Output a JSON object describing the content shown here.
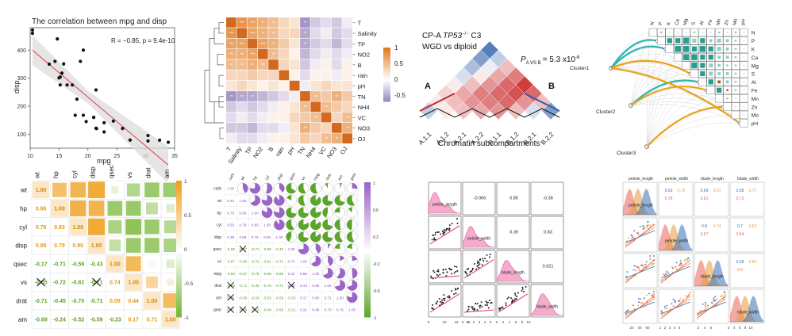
{
  "chart_data": [
    {
      "type": "scatter",
      "title": "The correlation between mpg and disp",
      "annotation": "R = −0.85, p = 9.4e-10",
      "xlabel": "mpg",
      "ylabel": "disp",
      "xlim": [
        10,
        35
      ],
      "ylim": [
        50,
        480
      ],
      "xticks": [
        "10",
        "15",
        "20",
        "25",
        "30",
        "35"
      ],
      "yticks": [
        "100",
        "200",
        "300",
        "400"
      ],
      "x": [
        21,
        21,
        22.8,
        21.4,
        18.7,
        18.1,
        14.3,
        24.4,
        22.8,
        19.2,
        17.8,
        16.4,
        17.3,
        15.2,
        10.4,
        10.4,
        14.7,
        32.4,
        30.4,
        33.9,
        21.5,
        15.5,
        15.2,
        13.3,
        19.2,
        27.3,
        26,
        30.4,
        15.8,
        19.7,
        15,
        21.4
      ],
      "y": [
        160,
        160,
        108,
        258,
        360,
        225,
        360,
        146.7,
        140.8,
        167.6,
        167.6,
        275.8,
        275.8,
        275.8,
        472,
        460,
        440,
        78.7,
        75.7,
        71.1,
        120.1,
        318,
        304,
        350,
        400,
        79,
        120.3,
        95.1,
        351,
        145,
        301,
        121
      ]
    },
    {
      "type": "heatmap",
      "rows": [
        "T",
        "Salinity",
        "TP",
        "NO2",
        "B",
        "rain",
        "pH",
        "TN",
        "NH4",
        "VC",
        "NO3",
        "OJ"
      ],
      "cols": [
        "T",
        "Salinity",
        "TP",
        "NO2",
        "B",
        "rain",
        "pH",
        "TN",
        "NH4",
        "VC",
        "NO3",
        "OJ"
      ],
      "legend_ticks": [
        "1",
        "0.5",
        "0",
        "-0.5"
      ],
      "values": [
        [
          1,
          0.8,
          0.7,
          0.6,
          0.5,
          0.3,
          0.2,
          -0.6,
          -0.3,
          -0.2,
          -0.3,
          -0.1
        ],
        [
          0.8,
          1,
          0.7,
          0.6,
          0.5,
          0.3,
          0.3,
          -0.5,
          -0.2,
          -0.1,
          -0.3,
          -0.2
        ],
        [
          0.7,
          0.7,
          1,
          0.7,
          0.6,
          0.4,
          0.2,
          -0.5,
          -0.3,
          -0.2,
          -0.4,
          -0.2
        ],
        [
          0.6,
          0.6,
          0.7,
          1,
          0.5,
          0.3,
          0.1,
          -0.4,
          -0.2,
          -0.1,
          -0.2,
          -0.1
        ],
        [
          0.5,
          0.5,
          0.6,
          0.5,
          1,
          0.3,
          0.2,
          -0.3,
          -0.1,
          0.1,
          -0.2,
          0.1
        ],
        [
          0.3,
          0.3,
          0.4,
          0.3,
          0.3,
          1,
          0.1,
          -0.2,
          0.1,
          0.1,
          -0.1,
          0.1
        ],
        [
          0.2,
          0.3,
          0.2,
          0.1,
          0.2,
          0.1,
          1,
          -0.1,
          0.2,
          0.3,
          0.2,
          0.2
        ],
        [
          -0.6,
          -0.5,
          -0.5,
          -0.4,
          -0.3,
          -0.2,
          -0.1,
          1,
          0.5,
          0.4,
          0.6,
          0.4
        ],
        [
          -0.3,
          -0.2,
          -0.3,
          -0.2,
          -0.1,
          0.1,
          0.2,
          0.5,
          1,
          0.5,
          0.4,
          0.3
        ],
        [
          -0.2,
          -0.1,
          -0.2,
          -0.1,
          0.1,
          0.1,
          0.3,
          0.4,
          0.5,
          1,
          0.3,
          0.5
        ],
        [
          -0.3,
          -0.3,
          -0.4,
          -0.2,
          -0.2,
          -0.1,
          0.2,
          0.6,
          0.4,
          0.3,
          1,
          0.6
        ],
        [
          -0.1,
          -0.2,
          -0.2,
          -0.1,
          0.1,
          0.1,
          0.2,
          0.4,
          0.3,
          0.5,
          0.6,
          1
        ]
      ]
    },
    {
      "type": "heatmap",
      "title_line1_pre": "CP-A ",
      "title_line1_italic": "TP53",
      "title_line1_sup": "−/−",
      "title_line1_post": " C3",
      "title_line2": "WGD vs diploid",
      "pvalue_label": "P",
      "pvalue_sub": "A VS B",
      "pvalue_value": "= 5.3 x10",
      "pvalue_exp": "-6",
      "xlabel": "Chromatin subcompartments",
      "categories": [
        "A.1.1",
        "A.1.2",
        "A.2.1",
        "A.2.2",
        "B.1.1",
        "B.1.2",
        "B.2.1",
        "B.2.2"
      ],
      "group_labels": [
        "A",
        "B"
      ],
      "values": [
        [
          -0.8
        ],
        [
          -0.6,
          -0.3
        ],
        [
          -0.4,
          -0.1,
          0.3
        ],
        [
          -0.2,
          0.1,
          0.4,
          0.6
        ],
        [
          0.1,
          0.3,
          0.5,
          0.7,
          0.9
        ],
        [
          0.2,
          0.4,
          0.6,
          0.7,
          0.8,
          0.7
        ],
        [
          0.1,
          0.3,
          0.5,
          0.6,
          0.7,
          0.5,
          0.3
        ],
        [
          -0.3,
          0.1,
          0.3,
          0.4,
          0.5,
          0.3,
          -0.2,
          -0.6
        ]
      ]
    },
    {
      "type": "heatmap",
      "cols": [
        "N",
        "P",
        "K",
        "Ca",
        "Mg",
        "S",
        "Al",
        "Fe",
        "Mn",
        "Zn",
        "Mo",
        "pH"
      ],
      "rows": [
        "N",
        "P",
        "K",
        "Ca",
        "Mg",
        "S",
        "Al",
        "Fe",
        "Mn",
        "Zn",
        "Mo",
        "pH"
      ],
      "clusters": [
        "Cluster1",
        "Cluster2",
        "Cluster3"
      ],
      "values": [
        [
          1,
          0.2,
          0.1,
          0.1,
          0.1,
          0.2,
          0.1,
          0.1,
          0.2,
          0.1,
          0.2,
          0.1
        ],
        [
          0.2,
          1,
          0.5,
          0.5,
          0.6,
          0.4,
          0.5,
          0.3,
          0.4,
          0.3,
          0.2,
          0.1
        ],
        [
          0.1,
          0.5,
          1,
          0.6,
          0.6,
          0.5,
          0.6,
          0.5,
          0.4,
          0.3,
          0.2,
          0.1
        ],
        [
          0.1,
          0.5,
          0.6,
          1,
          0.6,
          0.6,
          0.5,
          0.5,
          0.3,
          0.3,
          0.2,
          0.1
        ],
        [
          0.1,
          0.6,
          0.6,
          0.6,
          1,
          0.6,
          0.5,
          0.4,
          0.3,
          0.2,
          0.2,
          0.1
        ],
        [
          0.2,
          0.4,
          0.5,
          0.6,
          0.6,
          1,
          0.5,
          0.4,
          0.3,
          0.3,
          0.2,
          0.1
        ],
        [
          0.1,
          0.5,
          0.6,
          0.5,
          0.5,
          0.5,
          1,
          0.5,
          -0.3,
          0.3,
          0.2,
          0.1
        ],
        [
          0.1,
          0.3,
          0.5,
          0.5,
          0.4,
          0.4,
          0.5,
          1,
          0.5,
          -0.2,
          0.2,
          0.1
        ],
        [
          0.2,
          0.4,
          0.4,
          0.3,
          0.3,
          0.3,
          -0.3,
          0.5,
          1,
          0.2,
          0.1,
          0.1
        ],
        [
          0.1,
          0.3,
          0.3,
          0.3,
          0.2,
          0.3,
          0.3,
          -0.2,
          0.2,
          1,
          0.1,
          0.1
        ],
        [
          0.2,
          0.2,
          0.2,
          0.2,
          0.2,
          0.2,
          0.2,
          0.2,
          0.1,
          0.1,
          1,
          0.1
        ],
        [
          0.1,
          0.1,
          0.1,
          0.1,
          0.1,
          0.1,
          0.1,
          0.1,
          0.1,
          0.1,
          0.1,
          1
        ]
      ]
    },
    {
      "type": "heatmap",
      "rows": [
        "wt",
        "hp",
        "cyl",
        "disp",
        "qsec",
        "vs",
        "drat",
        "am"
      ],
      "cols": [
        "wt",
        "hp",
        "cyl",
        "disp",
        "qsec",
        "vs",
        "drat",
        "am"
      ],
      "legend_ticks": [
        "1",
        "0.5",
        "0",
        "-0.5",
        "-1"
      ],
      "values": [
        [
          1.0,
          0.66,
          0.78,
          0.89,
          -0.17,
          -0.55,
          -0.71,
          -0.69
        ],
        [
          0.66,
          1.0,
          0.83,
          0.79,
          -0.71,
          -0.72,
          -0.45,
          -0.24
        ],
        [
          0.78,
          0.83,
          1.0,
          0.9,
          -0.59,
          -0.81,
          -0.7,
          -0.52
        ],
        [
          0.89,
          0.79,
          0.9,
          1.0,
          -0.43,
          -0.71,
          -0.71,
          -0.59
        ],
        [
          -0.17,
          -0.71,
          -0.59,
          -0.43,
          1.0,
          0.74,
          0.09,
          -0.23
        ],
        [
          -0.55,
          -0.72,
          -0.81,
          -0.71,
          0.74,
          1.0,
          0.44,
          0.17
        ],
        [
          -0.71,
          -0.45,
          -0.7,
          -0.71,
          0.09,
          0.44,
          1.0,
          0.71
        ],
        [
          -0.69,
          -0.24,
          -0.52,
          -0.59,
          -0.23,
          0.17,
          0.71,
          1.0
        ]
      ],
      "crossed_cells": [
        [
          5,
          0
        ],
        [
          5,
          3
        ]
      ],
      "lower_labels": [
        [
          "1.00"
        ],
        [
          "0.66",
          "1.00"
        ],
        [
          "0.78",
          "0.83",
          "1.00"
        ],
        [
          "0.89",
          "0.79",
          "0.90",
          "1.00"
        ],
        [
          "-0.17",
          "-0.71",
          "-0.59",
          "-0.43",
          "1.00"
        ],
        [
          "-0.55",
          "-0.72",
          "-0.81",
          "-0.71",
          "0.74",
          "1.00"
        ],
        [
          "-0.71",
          "-0.45",
          "-0.70",
          "-0.71",
          "0.09",
          "0.44",
          "1.00"
        ],
        [
          "-0.69",
          "-0.24",
          "-0.52",
          "-0.59",
          "-0.23",
          "0.17",
          "0.71",
          "1.00"
        ]
      ]
    },
    {
      "type": "heatmap",
      "rows": [
        "carb",
        "wt",
        "hp",
        "cyl",
        "disp",
        "qsec",
        "vs",
        "mpg",
        "drat",
        "am",
        "gear"
      ],
      "cols": [
        "carb",
        "wt",
        "hp",
        "cyl",
        "disp",
        "qsec",
        "vs",
        "mpg",
        "drat",
        "am",
        "gear"
      ],
      "legend_ticks": [
        "1",
        "0.6",
        "0.2",
        "-0.2",
        "-0.6",
        "-1"
      ],
      "values": [
        [
          1,
          0.43,
          0.75,
          0.53,
          0.39,
          -0.66,
          -0.57,
          -0.55,
          -0.09,
          0.06,
          0.27
        ],
        [
          0.43,
          1,
          0.66,
          0.78,
          0.89,
          -0.17,
          -0.55,
          -0.87,
          -0.71,
          -0.69,
          -0.58
        ],
        [
          0.75,
          0.66,
          1,
          0.83,
          0.79,
          -0.71,
          -0.72,
          -0.78,
          -0.45,
          -0.24,
          -0.13
        ],
        [
          0.53,
          0.78,
          0.83,
          1,
          0.9,
          -0.59,
          -0.81,
          -0.85,
          -0.7,
          -0.52,
          -0.49
        ],
        [
          0.39,
          0.89,
          0.79,
          0.9,
          1,
          -0.43,
          -0.71,
          -0.85,
          -0.71,
          -0.59,
          -0.56
        ],
        [
          -0.66,
          -0.17,
          -0.71,
          -0.59,
          -0.43,
          1,
          0.74,
          0.42,
          0.09,
          -0.23,
          -0.21
        ],
        [
          -0.57,
          -0.55,
          -0.72,
          -0.81,
          -0.71,
          0.74,
          1,
          0.66,
          0.44,
          0.17,
          0.21
        ],
        [
          -0.55,
          -0.87,
          -0.78,
          -0.85,
          -0.85,
          0.42,
          0.66,
          1,
          0.68,
          0.6,
          0.48
        ],
        [
          -0.09,
          -0.71,
          -0.45,
          -0.7,
          -0.71,
          0.09,
          0.44,
          0.68,
          1,
          0.71,
          0.7
        ],
        [
          0.06,
          -0.69,
          -0.24,
          -0.52,
          -0.59,
          -0.23,
          0.17,
          0.6,
          0.71,
          1,
          0.79
        ],
        [
          0.27,
          -0.58,
          -0.13,
          -0.49,
          -0.56,
          -0.21,
          0.21,
          0.48,
          0.7,
          0.79,
          1
        ]
      ],
      "crossed_cells": [
        [
          5,
          1
        ],
        [
          8,
          0
        ],
        [
          8,
          5
        ],
        [
          9,
          0
        ],
        [
          10,
          0
        ],
        [
          10,
          1
        ],
        [
          10,
          2
        ]
      ]
    },
    {
      "type": "scatter",
      "layout": "pairs",
      "variables": [
        "petiole_length",
        "petiole_width",
        "blade_length",
        "blade_width"
      ],
      "upper_labels": [
        "-0.066",
        "0.85",
        "-0.38",
        "0.39",
        "0.83",
        "0.021"
      ],
      "xticks": [
        "0",
        "20",
        "40",
        "60",
        "0",
        "1",
        "2",
        "3",
        "4",
        "5",
        "0",
        "2",
        "4",
        "6",
        "8",
        "10"
      ]
    },
    {
      "type": "scatter",
      "layout": "pairs",
      "variables": [
        "petiole_length",
        "petiole_width",
        "blade_length",
        "blade_width"
      ],
      "group_colors": [
        "#e8685b",
        "#e89a3c",
        "#3b73b9"
      ],
      "upper_labels": [
        [
          "0.63",
          "0.75",
          "0.78"
        ],
        [
          "0.69",
          "0.91",
          "0.81"
        ],
        [
          "0.58",
          "0.77",
          "0.73"
        ],
        [
          "0.8",
          "0.74",
          "0.67"
        ],
        [
          "0.7",
          "0.62",
          "0.64"
        ],
        [
          "0.68",
          "0.82",
          "0.9"
        ]
      ],
      "xticks": [
        "20",
        "40",
        "60",
        "1",
        "2",
        "3",
        "4",
        "5",
        "2",
        "4",
        "6",
        "2",
        "4",
        "6",
        "8",
        "10"
      ]
    }
  ]
}
